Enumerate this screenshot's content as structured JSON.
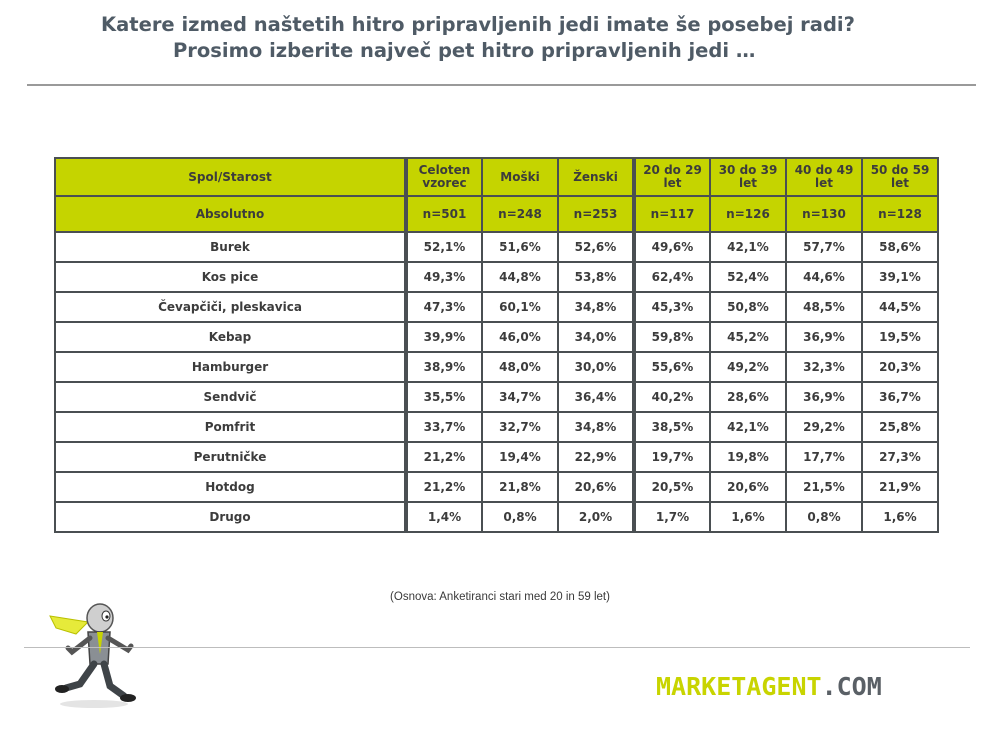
{
  "title": {
    "line1": "Katere izmed naštetih hitro pripravljenih jedi imate še posebej radi?",
    "line2": "Prosimo izberite največ pet hitro pripravljenih jedi …"
  },
  "table": {
    "header": [
      "Spol/Starost",
      "Celoten vzorec",
      "Moški",
      "Ženski",
      "20 do 29 let",
      "30 do 39 let",
      "40 do 49 let",
      "50 do 59 let"
    ],
    "absolute": [
      "Absolutno",
      "n=501",
      "n=248",
      "n=253",
      "n=117",
      "n=126",
      "n=130",
      "n=128"
    ],
    "rows": [
      [
        "Burek",
        "52,1%",
        "51,6%",
        "52,6%",
        "49,6%",
        "42,1%",
        "57,7%",
        "58,6%"
      ],
      [
        "Kos pice",
        "49,3%",
        "44,8%",
        "53,8%",
        "62,4%",
        "52,4%",
        "44,6%",
        "39,1%"
      ],
      [
        "Čevapčiči, pleskavica",
        "47,3%",
        "60,1%",
        "34,8%",
        "45,3%",
        "50,8%",
        "48,5%",
        "44,5%"
      ],
      [
        "Kebap",
        "39,9%",
        "46,0%",
        "34,0%",
        "59,8%",
        "45,2%",
        "36,9%",
        "19,5%"
      ],
      [
        "Hamburger",
        "38,9%",
        "48,0%",
        "30,0%",
        "55,6%",
        "49,2%",
        "32,3%",
        "20,3%"
      ],
      [
        "Sendvič",
        "35,5%",
        "34,7%",
        "36,4%",
        "40,2%",
        "28,6%",
        "36,9%",
        "36,7%"
      ],
      [
        "Pomfrit",
        "33,7%",
        "32,7%",
        "34,8%",
        "38,5%",
        "42,1%",
        "29,2%",
        "25,8%"
      ],
      [
        "Perutničke",
        "21,2%",
        "19,4%",
        "22,9%",
        "19,7%",
        "19,8%",
        "17,7%",
        "27,3%"
      ],
      [
        "Hotdog",
        "21,2%",
        "21,8%",
        "20,6%",
        "20,5%",
        "20,6%",
        "21,5%",
        "21,9%"
      ],
      [
        "Drugo",
        "1,4%",
        "0,8%",
        "2,0%",
        "1,7%",
        "1,6%",
        "0,8%",
        "1,6%"
      ]
    ]
  },
  "note": "(Osnova: Anketiranci stari med 20 in 59 let)",
  "logo": {
    "part1": "MARKETAGENT",
    "part2": ".COM"
  },
  "colors": {
    "accent": "#c5d400",
    "title": "#4f5b66",
    "border": "#4a4f52"
  },
  "icons": {
    "mascot": "running-agent-mascot"
  }
}
